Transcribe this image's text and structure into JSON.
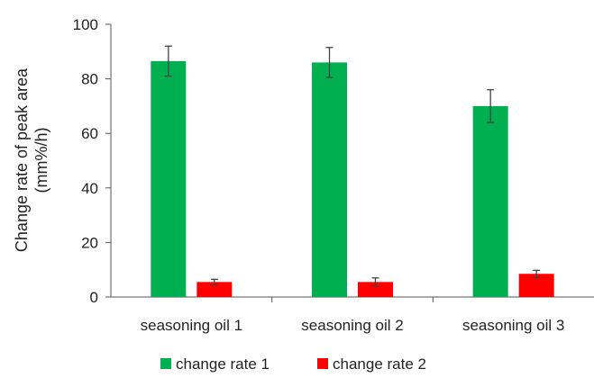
{
  "chart_data": {
    "type": "bar",
    "categories": [
      "seasoning oil 1",
      "seasoning oil 2",
      "seasoning oil 3"
    ],
    "series": [
      {
        "name": "change rate 1",
        "color": "#00b050",
        "values": [
          86.5,
          86.0,
          70.0
        ],
        "errors": [
          5.5,
          5.5,
          6.0
        ]
      },
      {
        "name": "change rate 2",
        "color": "#ff0000",
        "values": [
          5.5,
          5.5,
          8.5
        ],
        "errors": [
          1.0,
          1.5,
          1.3
        ]
      }
    ],
    "ylabel_line1": "Change rate of peak area",
    "ylabel_line2": "(mm%/h)",
    "ylim": [
      0,
      100
    ],
    "yticks": [
      "0",
      "20",
      "40",
      "60",
      "80",
      "100"
    ],
    "grid": false,
    "legend_position": "bottom"
  }
}
